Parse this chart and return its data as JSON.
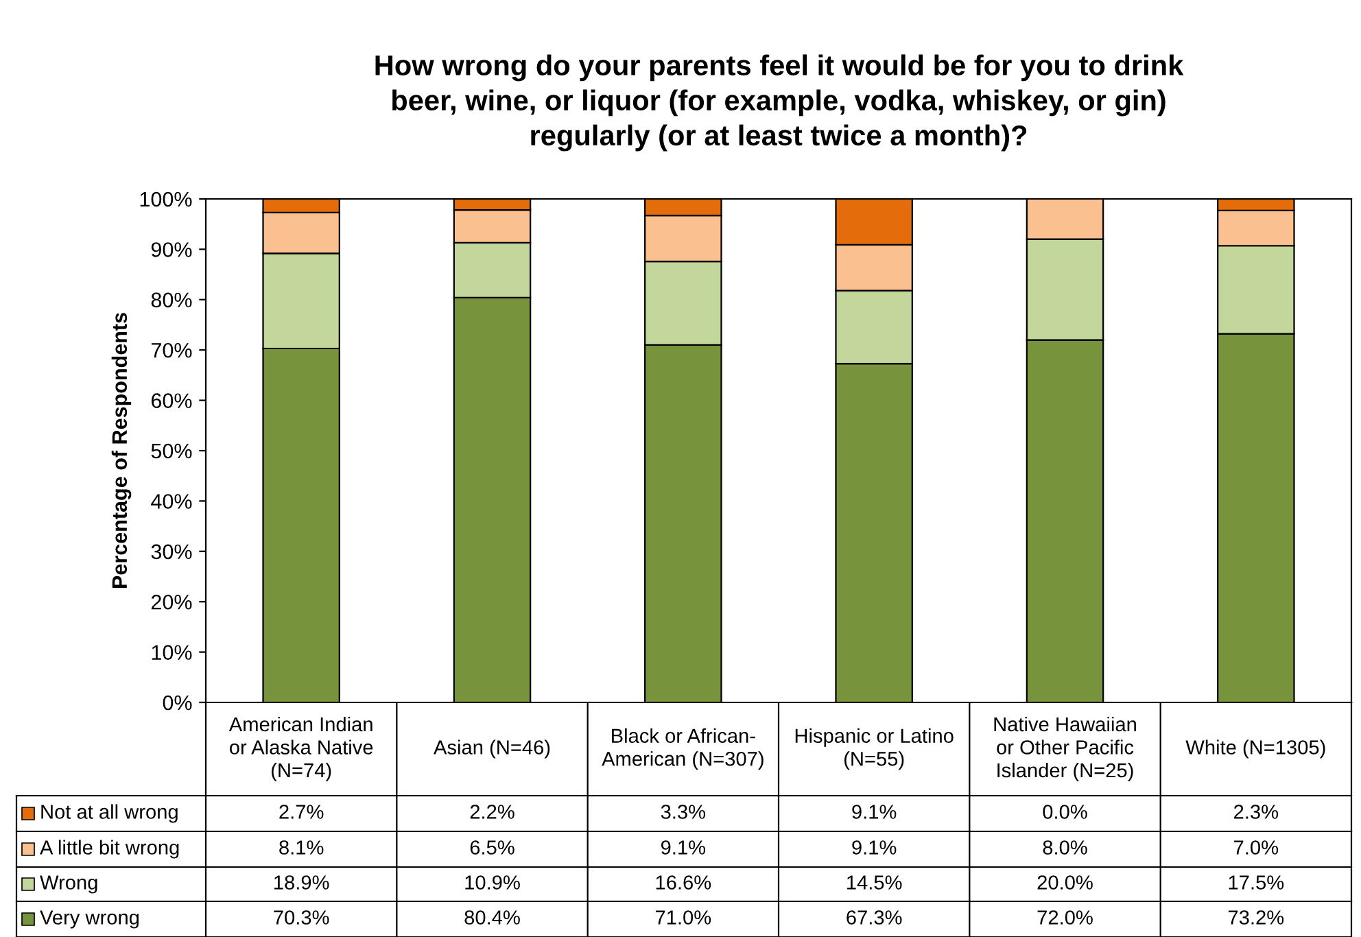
{
  "chart_data": {
    "type": "bar",
    "stacked": true,
    "title": "How wrong do your parents feel it would be for you to drink\nbeer, wine, or liquor (for example, vodka, whiskey, or gin)\nregularly (or at least twice a month)?",
    "ylabel": "Percentage of Respondents",
    "categories": [
      "American Indian\nor Alaska Native\n(N=74)",
      "Asian (N=46)",
      "Black or African-\nAmerican (N=307)",
      "Hispanic or Latino\n(N=55)",
      "Native Hawaiian\nor Other Pacific\nIslander (N=25)",
      "White (N=1305)"
    ],
    "series": [
      {
        "name": "Very wrong",
        "color": "#77933c",
        "values": [
          70.3,
          80.4,
          71.0,
          67.3,
          72.0,
          73.2
        ],
        "value_labels": [
          "70.3%",
          "80.4%",
          "71.0%",
          "67.3%",
          "72.0%",
          "73.2%"
        ]
      },
      {
        "name": "Wrong",
        "color": "#c3d69b",
        "values": [
          18.9,
          10.9,
          16.6,
          14.5,
          20.0,
          17.5
        ],
        "value_labels": [
          "18.9%",
          "10.9%",
          "16.6%",
          "14.5%",
          "20.0%",
          "17.5%"
        ]
      },
      {
        "name": "A little bit wrong",
        "color": "#fac090",
        "values": [
          8.1,
          6.5,
          9.1,
          9.1,
          8.0,
          7.0
        ],
        "value_labels": [
          "8.1%",
          "6.5%",
          "9.1%",
          "9.1%",
          "8.0%",
          "7.0%"
        ]
      },
      {
        "name": "Not at all wrong",
        "color": "#e46c0a",
        "values": [
          2.7,
          2.2,
          3.3,
          9.1,
          0.0,
          2.3
        ],
        "value_labels": [
          "2.7%",
          "2.2%",
          "3.3%",
          "9.1%",
          "0.0%",
          "2.3%"
        ]
      }
    ],
    "ylim": [
      0,
      100
    ],
    "yticks": [
      {
        "value": 0,
        "label": "0%"
      },
      {
        "value": 10,
        "label": "10%"
      },
      {
        "value": 20,
        "label": "20%"
      },
      {
        "value": 30,
        "label": "30%"
      },
      {
        "value": 40,
        "label": "40%"
      },
      {
        "value": 50,
        "label": "50%"
      },
      {
        "value": 60,
        "label": "60%"
      },
      {
        "value": 70,
        "label": "70%"
      },
      {
        "value": 80,
        "label": "80%"
      },
      {
        "value": 90,
        "label": "90%"
      },
      {
        "value": 100,
        "label": "100%"
      }
    ],
    "grid": false,
    "legend": "bottom left"
  }
}
